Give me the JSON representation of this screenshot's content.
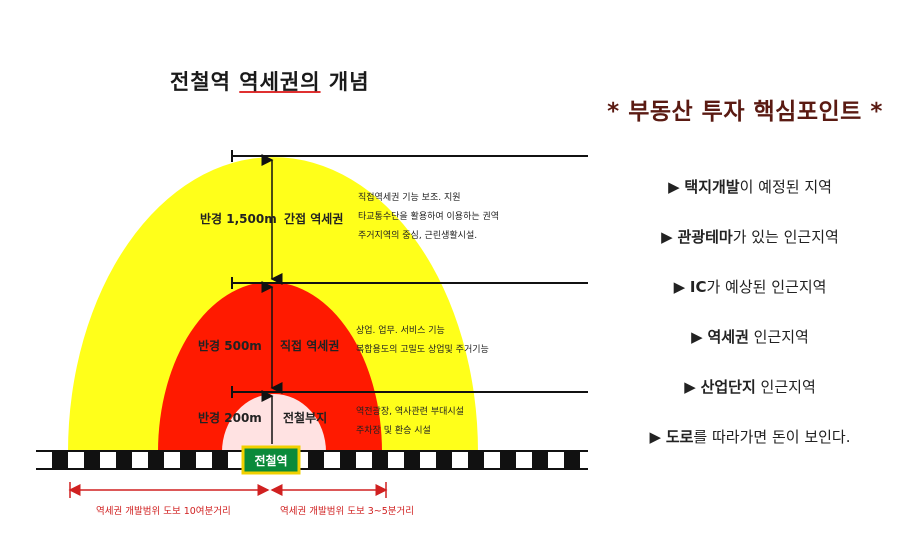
{
  "title": {
    "part1": "전철역 ",
    "part2": "역세권의",
    "part3": " 개념"
  },
  "zones": {
    "outer": {
      "radius": "반경 1,500m",
      "type": "간접 역세권",
      "desc1": "직접역세권 기능 보조. 지원",
      "desc2": "타교통수단을 활용하여 이용하는 권역",
      "desc3": "주거지역의 중심, 근린생활시설."
    },
    "middle": {
      "radius": "반경 500m",
      "type": "직접 역세권",
      "desc1": "상업. 업무. 서비스 기능",
      "desc2": "복합용도의 고밀도 상업및 주거기능"
    },
    "inner": {
      "radius": "반경 200m",
      "type": "전철부지",
      "desc1": "역전광장, 역사관련 부대시설",
      "desc2": "주차장 및 환승 시설"
    }
  },
  "station": "전철역",
  "walk": {
    "far": "역세권 개발범위 도보 10여분거리",
    "near": "역세권 개발범위 도보 3~5분거리"
  },
  "colors": {
    "outer": "#ffff1a",
    "middle": "#ff1a00",
    "inner": "#ffe2e2",
    "station_bg": "#0a8a3a",
    "station_border": "#f0d000",
    "heading": "#5a1a12",
    "walk_text": "#d02020"
  },
  "right": {
    "heading": "*  부동산 투자 핵심포인트  *",
    "items": [
      {
        "bullet": "▶",
        "strong": "택지개발",
        "rest": "이 예정된 지역"
      },
      {
        "bullet": "▶",
        "strong": "관광테마",
        "rest": "가 있는 인근지역"
      },
      {
        "bullet": "▶",
        "strong": "IC",
        "rest": "가 예상된 인근지역"
      },
      {
        "bullet": "▶",
        "strong": "역세권",
        "rest": " 인근지역"
      },
      {
        "bullet": "▶",
        "strong": "산업단지",
        "rest": " 인근지역"
      },
      {
        "bullet": "▶",
        "strong": "도로",
        "rest": "를 따라가면 돈이 보인다."
      }
    ]
  }
}
